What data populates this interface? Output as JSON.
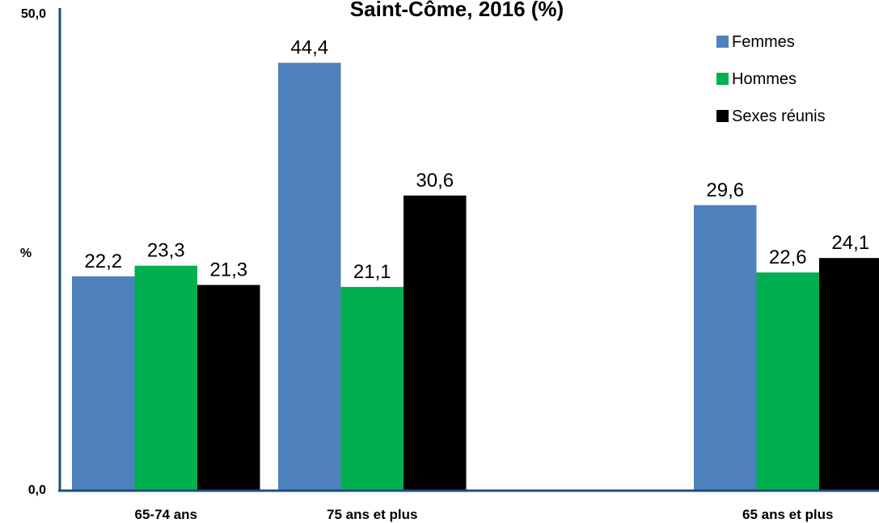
{
  "chart_data": {
    "type": "bar",
    "title": "Saint-Côme, 2016 (%)",
    "ylabel": "%",
    "ylim": [
      0,
      50
    ],
    "yticks": [
      "0,0",
      "50,0"
    ],
    "categories": [
      "65-74 ans",
      "75 ans et plus",
      "65 ans et plus"
    ],
    "series": [
      {
        "name": "Femmes",
        "color": "#4F81BD",
        "values": [
          22.2,
          44.4,
          29.6
        ],
        "labels": [
          "22,2",
          "44,4",
          "29,6"
        ]
      },
      {
        "name": "Hommes",
        "color": "#00B050",
        "values": [
          23.3,
          21.1,
          22.6
        ],
        "labels": [
          "23,3",
          "21,1",
          "22,6"
        ]
      },
      {
        "name": "Sexes réunis",
        "color": "#000000",
        "values": [
          21.3,
          30.6,
          24.1
        ],
        "labels": [
          "21,3",
          "30,6",
          "24,1"
        ]
      }
    ],
    "legend": "top-right",
    "grid": false
  }
}
